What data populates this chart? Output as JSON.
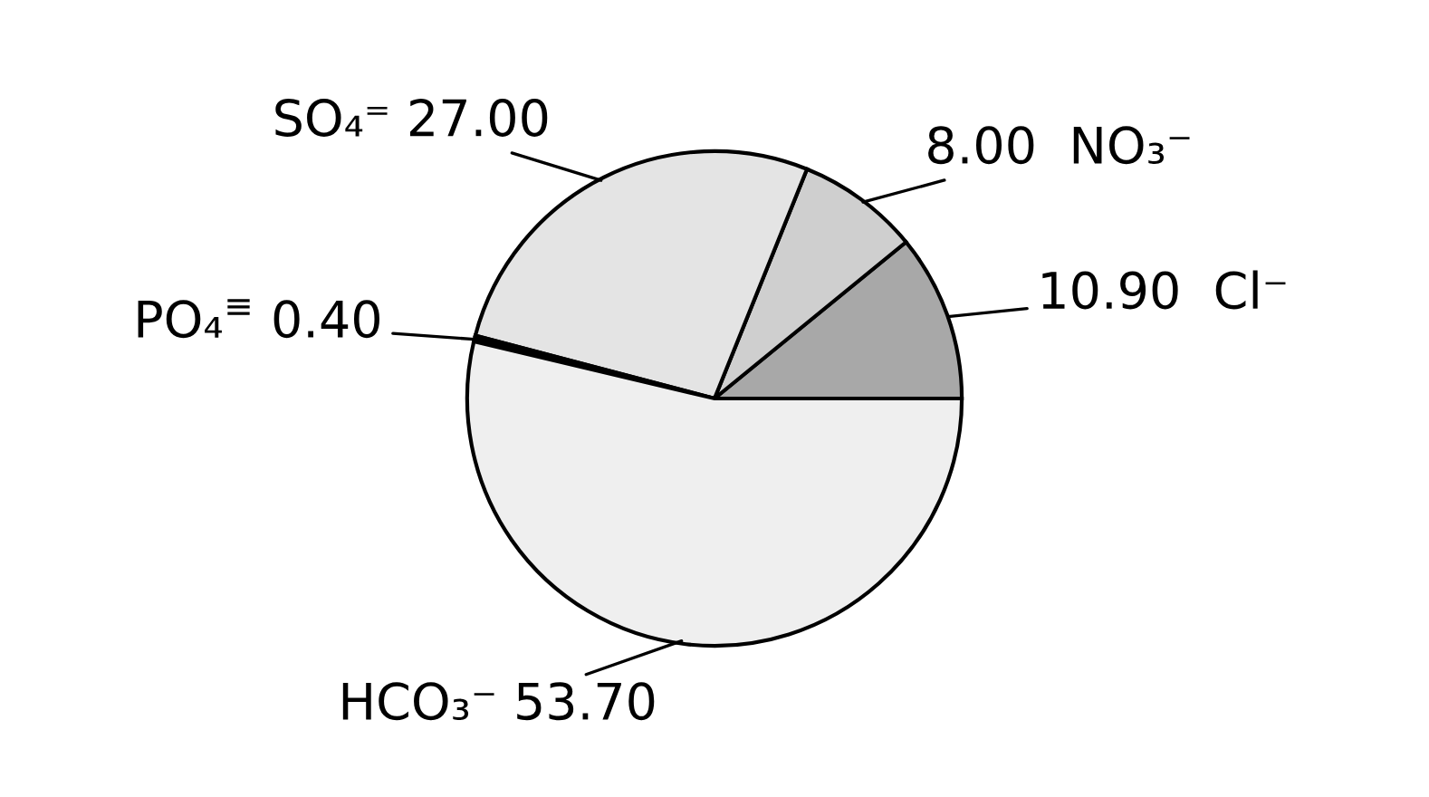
{
  "chart_data": {
    "type": "pie",
    "categories": [
      "Cl⁻",
      "NO₃⁻",
      "SO₄⁼",
      "PO₄$^{≡}$",
      "HCO₃⁻"
    ],
    "values": [
      10.9,
      8.0,
      27.0,
      0.4,
      53.7
    ],
    "value_labels": [
      "10.90",
      "8.00",
      "27.00",
      "0.40",
      "53.70"
    ],
    "colors": [
      "#a8a8a8",
      "#cfcfcf",
      "#e4e4e4",
      "#000000",
      "#efefef"
    ],
    "legend": false
  }
}
